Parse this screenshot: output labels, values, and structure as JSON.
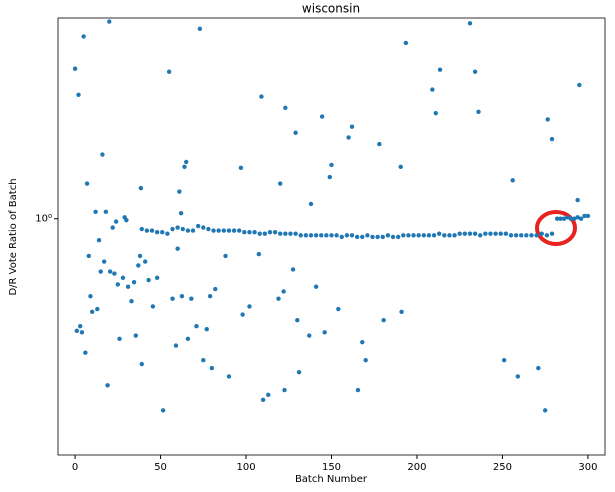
{
  "chart_data": {
    "type": "scatter",
    "title": "wisconsin",
    "xlabel": "Batch Number",
    "ylabel": "D/R Vote Ratio of Batch",
    "xlim": [
      -10,
      310
    ],
    "xticks": [
      0,
      50,
      100,
      150,
      200,
      250,
      300
    ],
    "ylim": [
      0.19,
      4.1
    ],
    "yticks": [
      {
        "value": 1,
        "label": "10⁰"
      }
    ],
    "ylog": true,
    "grid": false,
    "series": [
      {
        "color": "#1f77b4",
        "x": [
          0,
          2,
          1,
          3,
          4,
          5,
          6,
          7,
          8,
          9,
          10,
          12,
          13,
          14,
          15,
          16,
          17,
          18,
          19,
          20,
          20.5,
          22,
          23,
          24,
          25,
          26,
          28,
          29,
          30,
          31,
          33,
          34.5,
          35.5,
          37,
          38,
          38.5,
          39,
          41,
          43,
          45.5,
          48,
          51.5,
          55,
          57,
          59,
          60,
          61,
          62,
          62.5,
          64,
          65,
          66,
          68,
          71,
          73,
          75,
          77,
          79,
          80,
          82,
          88,
          90,
          97,
          98,
          102,
          107.5,
          109,
          110,
          113,
          119,
          120,
          122,
          122.5,
          123,
          127.5,
          129,
          130,
          131,
          137,
          138,
          141,
          144.5,
          146,
          149,
          150,
          154,
          160,
          162,
          165.5,
          168,
          170,
          178,
          180.5,
          190.5,
          191,
          193.5,
          209,
          211,
          213.5,
          231,
          234,
          236,
          251,
          256,
          259,
          271,
          275,
          276.5,
          279,
          294,
          295,
          39,
          42,
          45,
          48,
          51,
          54,
          57,
          60,
          63,
          66,
          69,
          72,
          75,
          78,
          81,
          84,
          87,
          90,
          93,
          96,
          99,
          102,
          105,
          108,
          111,
          114,
          117,
          120,
          123,
          126,
          129,
          132,
          135,
          138,
          141,
          144,
          147,
          150,
          153,
          156,
          159,
          162,
          165,
          168,
          171,
          174,
          177,
          180,
          183,
          186,
          189,
          192,
          195,
          198,
          201,
          204,
          207,
          210,
          213,
          216,
          219,
          222,
          225,
          228,
          231,
          234,
          237,
          240,
          243,
          246,
          249,
          252,
          255,
          258,
          261,
          264,
          267,
          270,
          273,
          276,
          279,
          282,
          284,
          286,
          288,
          290,
          292,
          294,
          296,
          298,
          300
        ],
        "values": [
          2.87,
          2.39,
          0.455,
          0.47,
          0.45,
          3.6,
          0.39,
          1.28,
          0.77,
          0.58,
          0.52,
          1.05,
          0.53,
          0.86,
          0.69,
          1.57,
          0.74,
          1.05,
          0.31,
          4.0,
          0.69,
          0.94,
          0.68,
          0.98,
          0.63,
          0.43,
          0.66,
          1.01,
          0.99,
          0.62,
          0.56,
          0.64,
          0.44,
          0.72,
          0.77,
          1.24,
          0.36,
          0.74,
          0.65,
          0.54,
          0.66,
          0.26,
          2.81,
          0.57,
          0.41,
          0.81,
          1.21,
          1.04,
          0.58,
          1.44,
          1.49,
          0.43,
          0.57,
          0.47,
          3.8,
          0.37,
          0.46,
          0.58,
          0.35,
          0.61,
          0.77,
          0.33,
          1.43,
          0.51,
          0.54,
          0.78,
          2.36,
          0.28,
          0.29,
          0.57,
          1.28,
          0.6,
          0.3,
          2.18,
          0.7,
          1.83,
          0.49,
          0.34,
          0.44,
          1.11,
          0.62,
          2.05,
          0.45,
          1.34,
          1.46,
          0.53,
          1.77,
          1.91,
          0.3,
          0.42,
          0.37,
          1.69,
          0.49,
          1.44,
          0.52,
          3.44,
          2.48,
          2.1,
          2.85,
          3.95,
          2.81,
          2.12,
          0.37,
          1.31,
          0.33,
          0.35,
          0.26,
          2.01,
          1.75,
          1.14,
          2.56,
          0.93,
          0.92,
          0.92,
          0.91,
          0.91,
          0.9,
          0.93,
          0.94,
          0.93,
          0.92,
          0.92,
          0.95,
          0.94,
          0.93,
          0.92,
          0.92,
          0.92,
          0.92,
          0.92,
          0.92,
          0.91,
          0.91,
          0.91,
          0.9,
          0.9,
          0.91,
          0.91,
          0.9,
          0.9,
          0.9,
          0.9,
          0.89,
          0.89,
          0.89,
          0.89,
          0.89,
          0.89,
          0.89,
          0.89,
          0.88,
          0.89,
          0.89,
          0.88,
          0.88,
          0.89,
          0.88,
          0.88,
          0.88,
          0.89,
          0.88,
          0.88,
          0.89,
          0.89,
          0.89,
          0.89,
          0.89,
          0.89,
          0.89,
          0.9,
          0.89,
          0.89,
          0.89,
          0.9,
          0.9,
          0.9,
          0.9,
          0.89,
          0.9,
          0.9,
          0.9,
          0.9,
          0.9,
          0.89,
          0.89,
          0.89,
          0.89,
          0.89,
          0.89,
          0.9,
          0.89,
          0.9,
          1.0,
          1.0,
          1.0,
          1.01,
          1.0,
          1.0,
          1.01,
          1.0,
          1.02,
          1.02
        ]
      }
    ]
  }
}
